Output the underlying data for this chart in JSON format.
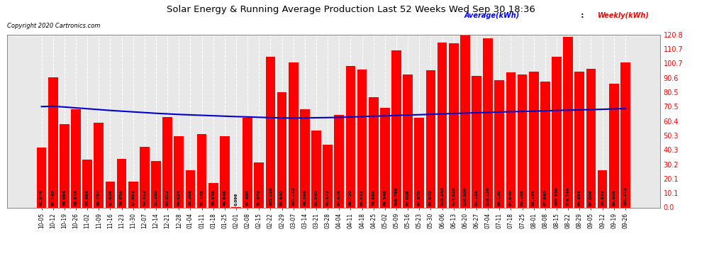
{
  "title": "Solar Energy & Running Average Production Last 52 Weeks Wed Sep 30 18:36",
  "copyright": "Copyright 2020 Cartronics.com",
  "legend_avg": "Average(kWh)",
  "legend_weekly": "Weekly(kWh)",
  "bar_color": "#ff0000",
  "avg_line_color": "#0000cd",
  "background_color": "#ffffff",
  "plot_bg_color": "#e8e8e8",
  "grid_color": "#ffffff",
  "yticks": [
    0.0,
    10.1,
    20.1,
    30.2,
    40.3,
    50.3,
    60.4,
    70.5,
    80.5,
    90.6,
    100.7,
    110.7,
    120.8
  ],
  "ylim": [
    0,
    120.8
  ],
  "categories": [
    "10-05",
    "10-12",
    "10-19",
    "10-26",
    "11-02",
    "11-09",
    "11-16",
    "11-23",
    "11-30",
    "12-07",
    "12-14",
    "12-21",
    "12-28",
    "01-04",
    "01-11",
    "01-18",
    "01-25",
    "02-01",
    "02-08",
    "02-15",
    "02-22",
    "02-29",
    "03-07",
    "03-14",
    "03-21",
    "03-28",
    "04-04",
    "04-11",
    "04-18",
    "04-25",
    "05-02",
    "05-09",
    "05-16",
    "05-23",
    "05-30",
    "06-06",
    "06-13",
    "06-20",
    "06-27",
    "07-04",
    "07-11",
    "07-18",
    "07-25",
    "08-01",
    "08-08",
    "08-15",
    "08-22",
    "08-29",
    "09-05",
    "09-12",
    "09-19",
    "09-26"
  ],
  "weekly_values": [
    41.876,
    91.14,
    58.084,
    68.816,
    33.684,
    59.252,
    17.936,
    34.056,
    17.992,
    42.512,
    32.28,
    63.032,
    49.624,
    26.208,
    51.128,
    16.936,
    49.648,
    0.096,
    62.46,
    31.676,
    105.528,
    80.64,
    101.112,
    68.568,
    53.84,
    43.872,
    64.816,
    98.72,
    96.632,
    76.96,
    69.548,
    109.788,
    93.008,
    62.92,
    95.92,
    115.248,
    114.82,
    120.8,
    92.128,
    118.136,
    89.12,
    94.64,
    93.168,
    95.144,
    87.84,
    105.356,
    119.244,
    94.864,
    97.0,
    25.932,
    86.608,
    101.272
  ],
  "avg_values": [
    70.5,
    70.7,
    70.2,
    69.6,
    69.0,
    68.4,
    67.8,
    67.3,
    66.8,
    66.3,
    65.8,
    65.4,
    65.0,
    64.7,
    64.4,
    64.1,
    63.8,
    63.5,
    63.3,
    63.0,
    62.8,
    62.6,
    62.5,
    62.6,
    62.7,
    62.8,
    63.0,
    63.2,
    63.5,
    63.8,
    64.0,
    64.3,
    64.6,
    64.8,
    65.1,
    65.4,
    65.7,
    65.9,
    66.2,
    66.4,
    66.7,
    66.9,
    67.1,
    67.3,
    67.5,
    67.8,
    68.0,
    68.2,
    68.4,
    68.6,
    68.9,
    69.1
  ]
}
